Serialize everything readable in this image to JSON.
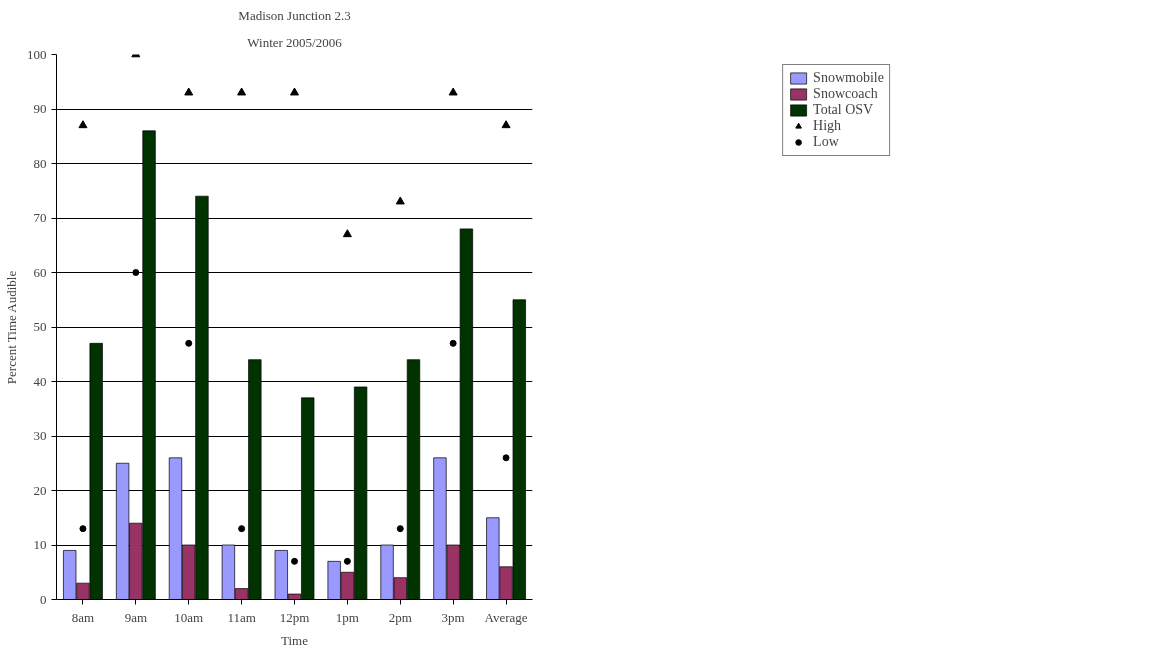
{
  "chart_data": {
    "type": "bar",
    "title": "Madison Junction 2.3",
    "subtitle": "Winter 2005/2006",
    "xlabel": "Time",
    "ylabel": "Percent Time Audible",
    "categories": [
      "8am",
      "9am",
      "10am",
      "11am",
      "12pm",
      "1pm",
      "2pm",
      "3pm",
      "Average"
    ],
    "series": [
      {
        "name": "Snowmobile",
        "color": "#9999ff",
        "values": [
          9,
          25,
          26,
          10,
          9,
          7,
          10,
          26,
          15
        ]
      },
      {
        "name": "Snowcoach",
        "color": "#993366",
        "values": [
          3,
          14,
          10,
          2,
          1,
          5,
          4,
          10,
          6
        ]
      },
      {
        "name": "Total OSV",
        "color": "#003300",
        "values": [
          47,
          86,
          74,
          44,
          37,
          39,
          44,
          68,
          55
        ]
      },
      {
        "name": "High",
        "type": "scatter",
        "marker": "triangle",
        "color": "#000000",
        "x": [
          "8am",
          "9am",
          "10am",
          "11am",
          "12pm",
          "1pm",
          "2pm",
          "3pm",
          "Average"
        ],
        "values": [
          87,
          100,
          93,
          93,
          93,
          67,
          73,
          93,
          87
        ]
      },
      {
        "name": "Low",
        "type": "scatter",
        "marker": "circle",
        "color": "#000000",
        "x": [
          "8am",
          "9am",
          "10am",
          "11am",
          "12pm",
          "1pm",
          "2pm",
          "3pm",
          "Average"
        ],
        "values": [
          13,
          60,
          47,
          13,
          7,
          7,
          13,
          47,
          26
        ]
      }
    ],
    "ylim": [
      0,
      100
    ],
    "yticks": [
      0,
      10,
      20,
      30,
      40,
      50,
      60,
      70,
      80,
      90,
      100
    ],
    "grid": "y",
    "legend": "top right"
  }
}
